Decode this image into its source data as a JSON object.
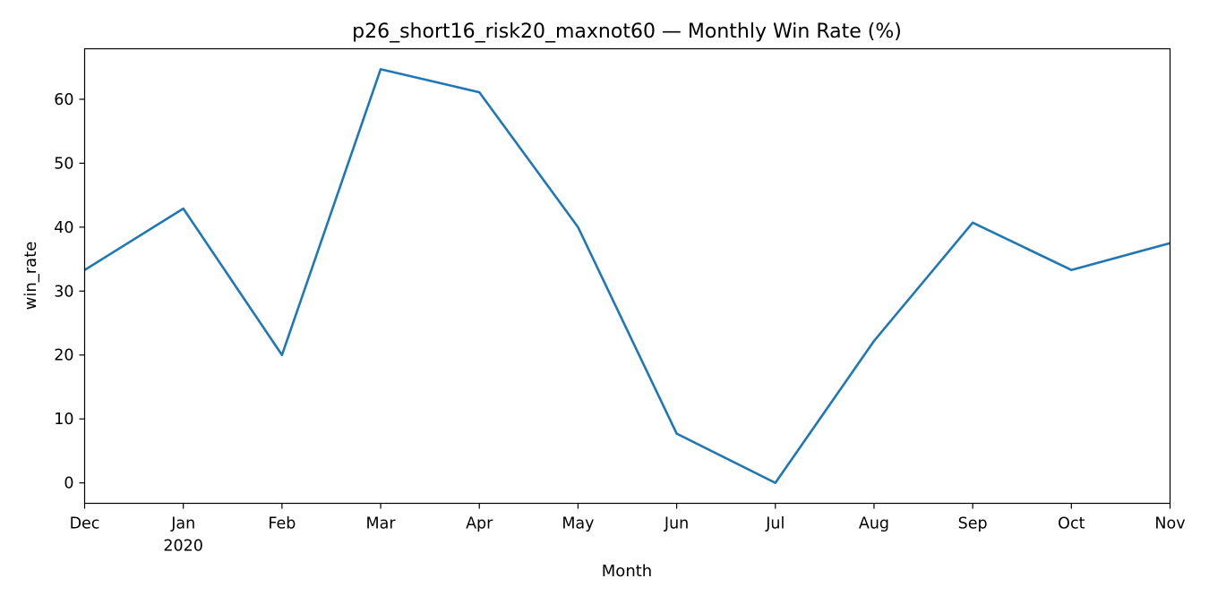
{
  "chart_data": {
    "type": "line",
    "title": "p26_short16_risk20_maxnot60 — Monthly Win Rate (%)",
    "xlabel": "Month",
    "ylabel": "win_rate",
    "x": [
      "2019-12",
      "2020-01",
      "2020-02",
      "2020-03",
      "2020-04",
      "2020-05",
      "2020-06",
      "2020-07",
      "2020-08",
      "2020-09",
      "2020-10",
      "2020-11"
    ],
    "x_tick_labels": [
      {
        "label": "Dec",
        "sub": ""
      },
      {
        "label": "Jan",
        "sub": "2020"
      },
      {
        "label": "Feb",
        "sub": ""
      },
      {
        "label": "Mar",
        "sub": ""
      },
      {
        "label": "Apr",
        "sub": ""
      },
      {
        "label": "May",
        "sub": ""
      },
      {
        "label": "Jun",
        "sub": ""
      },
      {
        "label": "Jul",
        "sub": ""
      },
      {
        "label": "Aug",
        "sub": ""
      },
      {
        "label": "Sep",
        "sub": ""
      },
      {
        "label": "Oct",
        "sub": ""
      },
      {
        "label": "Nov",
        "sub": ""
      }
    ],
    "series": [
      {
        "values": [
          33.3,
          42.9,
          20.0,
          64.7,
          61.1,
          40.0,
          7.7,
          0.0,
          22.2,
          40.7,
          33.3,
          37.5
        ],
        "color": "#1f77b4"
      }
    ],
    "ylim": [
      -3.2,
      67.9
    ],
    "y_ticks": [
      0,
      10,
      20,
      30,
      40,
      50,
      60
    ],
    "grid": false,
    "legend": "none"
  }
}
